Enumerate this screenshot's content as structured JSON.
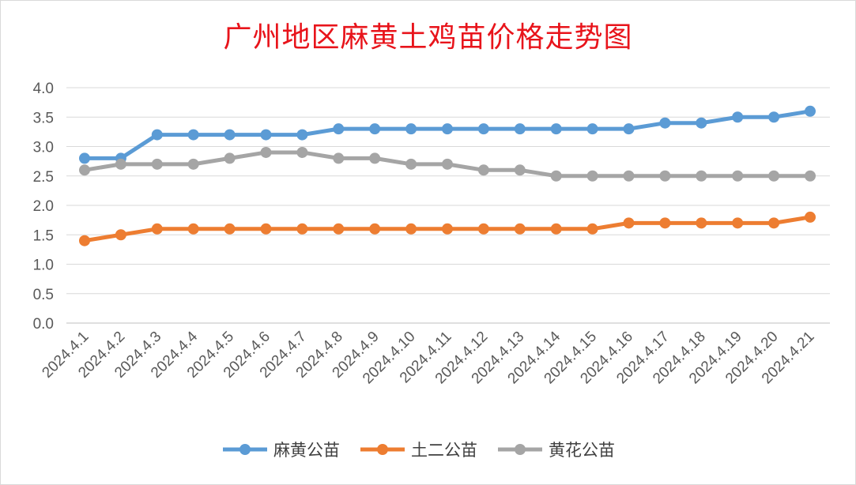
{
  "chart_data": {
    "type": "line",
    "title": "广州地区麻黄土鸡苗价格走势图",
    "xlabel": "",
    "ylabel": "",
    "categories": [
      "2024.4.1",
      "2024.4.2",
      "2024.4.3",
      "2024.4.4",
      "2024.4.5",
      "2024.4.6",
      "2024.4.7",
      "2024.4.8",
      "2024.4.9",
      "2024.4.10",
      "2024.4.11",
      "2024.4.12",
      "2024.4.13",
      "2024.4.14",
      "2024.4.15",
      "2024.4.16",
      "2024.4.17",
      "2024.4.18",
      "2024.4.19",
      "2024.4.20",
      "2024.4.21"
    ],
    "ylim": [
      0,
      4
    ],
    "yticks": [
      "0.0",
      "0.5",
      "1.0",
      "1.5",
      "2.0",
      "2.5",
      "3.0",
      "3.5",
      "4.0"
    ],
    "grid": true,
    "legend_position": "bottom",
    "series": [
      {
        "name": "麻黄公苗",
        "color": "#5b9bd5",
        "values": [
          2.8,
          2.8,
          3.2,
          3.2,
          3.2,
          3.2,
          3.2,
          3.3,
          3.3,
          3.3,
          3.3,
          3.3,
          3.3,
          3.3,
          3.3,
          3.3,
          3.4,
          3.4,
          3.5,
          3.5,
          3.6
        ]
      },
      {
        "name": "土二公苗",
        "color": "#ed7d31",
        "values": [
          1.4,
          1.5,
          1.6,
          1.6,
          1.6,
          1.6,
          1.6,
          1.6,
          1.6,
          1.6,
          1.6,
          1.6,
          1.6,
          1.6,
          1.6,
          1.7,
          1.7,
          1.7,
          1.7,
          1.7,
          1.8
        ]
      },
      {
        "name": "黄花公苗",
        "color": "#a5a5a5",
        "values": [
          2.6,
          2.7,
          2.7,
          2.7,
          2.8,
          2.9,
          2.9,
          2.8,
          2.8,
          2.7,
          2.7,
          2.6,
          2.6,
          2.5,
          2.5,
          2.5,
          2.5,
          2.5,
          2.5,
          2.5,
          2.5
        ]
      }
    ]
  }
}
